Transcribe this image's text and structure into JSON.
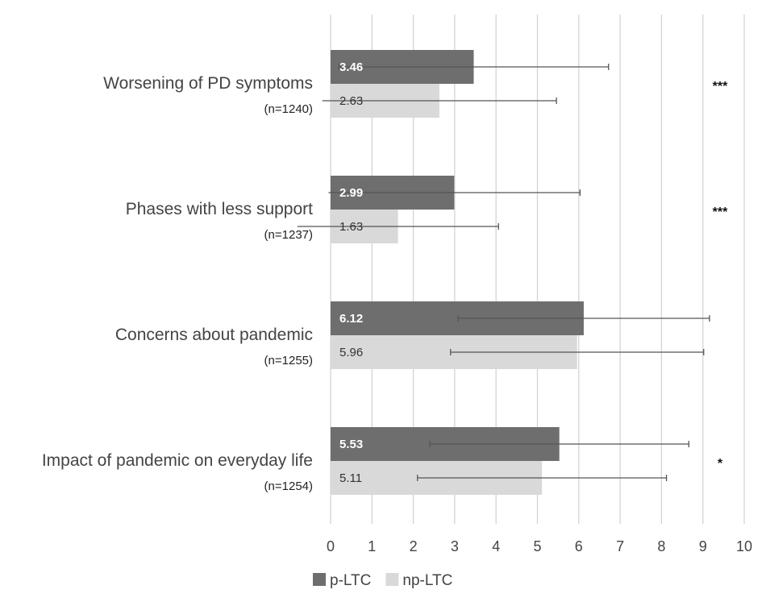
{
  "chart_data": {
    "type": "bar",
    "orientation": "horizontal",
    "categories": [
      {
        "label": "Worsening of PD symptoms",
        "n": "(n=1240)",
        "significance": "***"
      },
      {
        "label": "Phases with less support",
        "n": "(n=1237)",
        "significance": "***"
      },
      {
        "label": "Concerns about pandemic",
        "n": "(n=1255)",
        "significance": ""
      },
      {
        "label": "Impact of pandemic on everyday life",
        "n": "(n=1254)",
        "significance": "*"
      }
    ],
    "series": [
      {
        "name": "p-LTC",
        "color": "#6e6e6e",
        "values": [
          3.46,
          2.99,
          6.12,
          5.53
        ],
        "value_labels": [
          "3.46",
          "2.99",
          "6.12",
          "5.53"
        ],
        "error_low": [
          0.2,
          -0.05,
          3.08,
          2.4
        ],
        "error_high": [
          6.72,
          6.03,
          9.16,
          8.66
        ]
      },
      {
        "name": "np-LTC",
        "color": "#d9d9d9",
        "values": [
          2.63,
          1.63,
          5.96,
          5.11
        ],
        "value_labels": [
          "2.63",
          "1.63",
          "5.96",
          "5.11"
        ],
        "error_low": [
          -0.2,
          -0.8,
          2.9,
          2.1
        ],
        "error_high": [
          5.46,
          4.06,
          9.02,
          8.12
        ]
      }
    ],
    "xlim": [
      0,
      10
    ],
    "x_ticks": [
      "0",
      "1",
      "2",
      "3",
      "4",
      "5",
      "6",
      "7",
      "8",
      "9",
      "10"
    ],
    "grid": "vertical",
    "legend_position": "bottom-left",
    "title": "",
    "xlabel": "",
    "ylabel": ""
  }
}
